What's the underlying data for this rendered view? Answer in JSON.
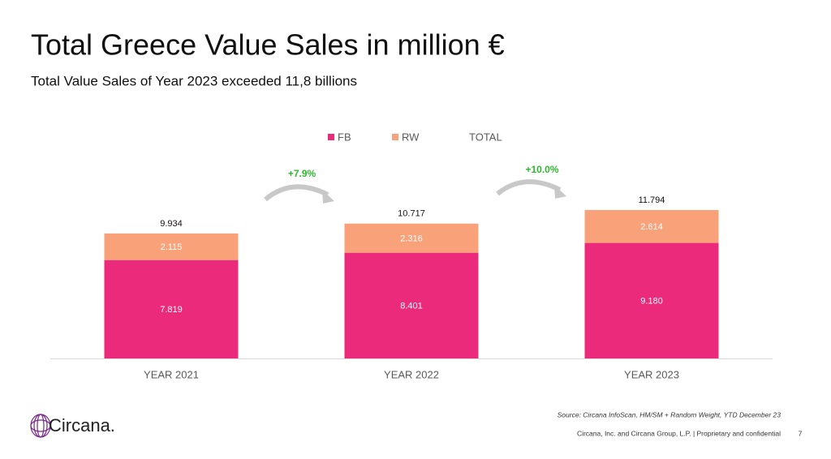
{
  "header": {
    "title": "Total Greece Value Sales in million €",
    "subtitle": "Total Value Sales of Year 2023 exceeded 11,8 billions"
  },
  "chart_data": {
    "type": "bar",
    "stacked": true,
    "categories": [
      "YEAR 2021",
      "YEAR 2022",
      "YEAR 2023"
    ],
    "series": [
      {
        "name": "FB",
        "color": "#ec2a7b",
        "values": [
          7819,
          8401,
          9180
        ],
        "value_labels": [
          "7.819",
          "8.401",
          "9.180"
        ]
      },
      {
        "name": "RW",
        "color": "#f9a27a",
        "values": [
          2115,
          2316,
          2614
        ],
        "value_labels": [
          "2.115",
          "2.316",
          "2.614"
        ]
      },
      {
        "name": "TOTAL",
        "values": [
          9934,
          10717,
          11794
        ],
        "value_labels": [
          "9.934",
          "10.717",
          "11.794"
        ]
      }
    ],
    "annotations": [
      "+7.9%",
      "+10.0%"
    ]
  },
  "footer": {
    "source": "Source: Circana InfoScan, HM/SM + Random Weight, YTD December 23",
    "copyright": "Circana, Inc. and Circana Group, L.P. |  Proprietary and confidential",
    "page": "7",
    "logo": "Circana."
  }
}
